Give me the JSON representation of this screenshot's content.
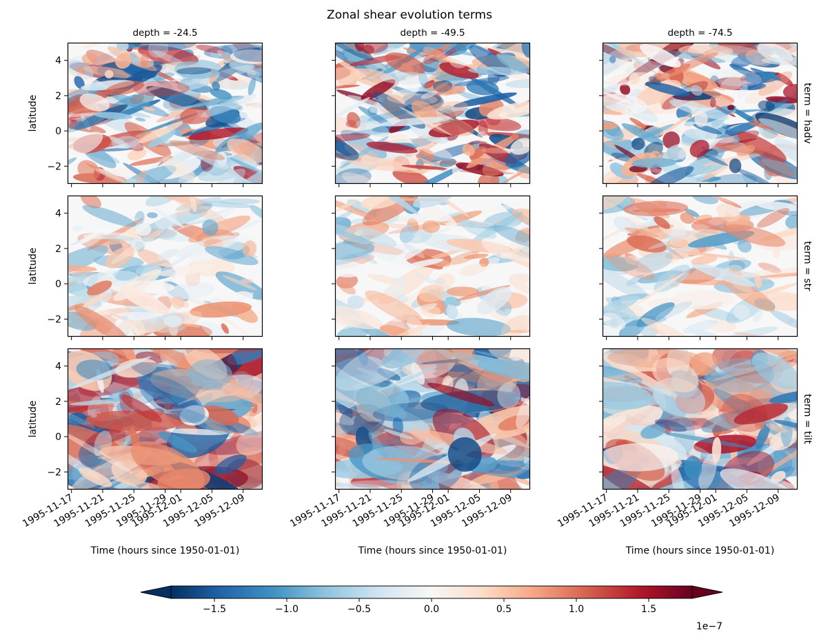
{
  "figure": {
    "title": "Zonal shear evolution terms"
  },
  "chart_data": {
    "type": "heatmap",
    "title": "Zonal shear evolution terms",
    "colormap": "RdBu_r",
    "colormap_stops": [
      "#053061",
      "#2166ac",
      "#4393c3",
      "#92c5de",
      "#d1e5f0",
      "#f7f7f7",
      "#fddbc7",
      "#f4a582",
      "#d6604d",
      "#b2182b",
      "#67001f"
    ],
    "value_range": [
      -1.8e-07,
      1.8e-07
    ],
    "columns": [
      {
        "variable": "depth",
        "label": "depth = -24.5"
      },
      {
        "variable": "depth",
        "label": "depth = -49.5"
      },
      {
        "variable": "depth",
        "label": "depth = -74.5"
      }
    ],
    "rows": [
      {
        "variable": "term",
        "label": "term = hadv"
      },
      {
        "variable": "term",
        "label": "term = str"
      },
      {
        "variable": "term",
        "label": "term = tilt"
      }
    ],
    "xlabel": "Time (hours since 1950-01-01)",
    "ylabel": "latitude",
    "xlim": [
      "1995-11-16T12:00",
      "1995-12-11T12:00"
    ],
    "ylim": [
      -3,
      5
    ],
    "x_ticks": [
      "1995-11-17",
      "1995-11-21",
      "1995-11-25",
      "1995-11-29",
      "1995-12-01",
      "1995-12-05",
      "1995-12-09"
    ],
    "y_ticks": [
      -2,
      0,
      2,
      4
    ],
    "y_tick_labels": [
      "−2",
      "0",
      "2",
      "4"
    ],
    "colorbar": {
      "orientation": "horizontal",
      "extend": "both",
      "ticks": [
        -1.5e-07,
        -1e-07,
        -5e-08,
        0,
        5e-08,
        1e-07,
        1.5e-07
      ],
      "tick_labels": [
        "−1.5",
        "−1.0",
        "−0.5",
        "0.0",
        "0.5",
        "1.0",
        "1.5"
      ],
      "offset_text": "1e−7"
    },
    "panels_note": "Nine pcolormesh panels (rows = term, columns = depth); each field is a dense gridded field of zonal shear tendency; individual cell values are not legible."
  }
}
